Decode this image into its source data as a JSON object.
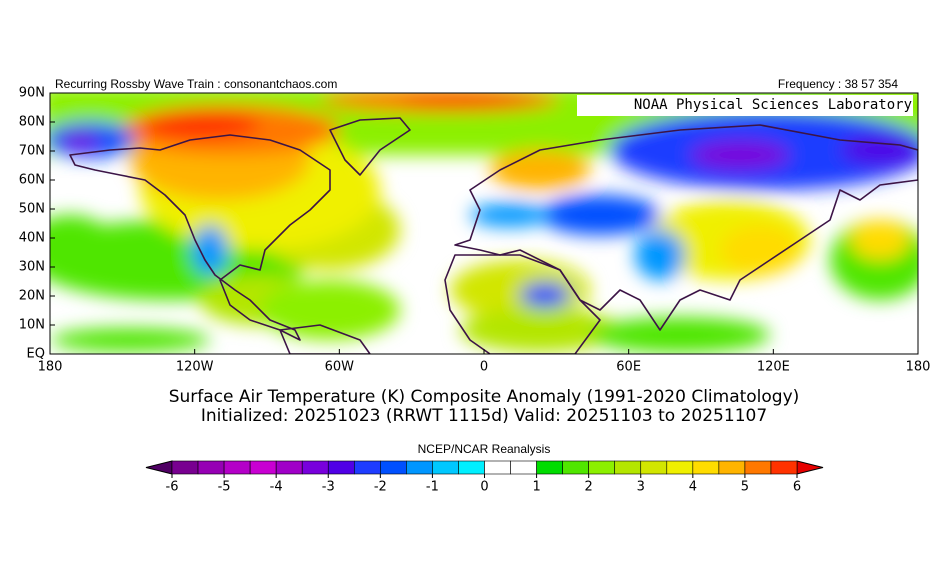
{
  "header": {
    "left": "Recurring Rossby Wave Train : consonantchaos.com",
    "right": "Frequency : 38 57 354"
  },
  "map": {
    "label": "NOAA Physical Sciences Laboratory",
    "lat_ticks": [
      "90N",
      "80N",
      "70N",
      "60N",
      "50N",
      "40N",
      "30N",
      "20N",
      "10N",
      "EQ"
    ],
    "lon_ticks": [
      "180",
      "120W",
      "60W",
      "0",
      "60E",
      "120E",
      "180"
    ]
  },
  "title": {
    "line1": "Surface Air Temperature (K) Composite Anomaly (1991-2020 Climatology)",
    "line2": "Initialized: 20251023 (RRWT 1115d) Valid: 20251103 to 20251107"
  },
  "colorbar": {
    "title": "NCEP/NCAR Reanalysis",
    "range": [
      -6,
      6
    ],
    "ticks": [
      -6,
      -5,
      -4,
      -3,
      -2,
      -1,
      0,
      1,
      2,
      3,
      4,
      5,
      6
    ],
    "low_color": "#500064",
    "high_color": "#e60000",
    "colors": [
      "#780090",
      "#9600b4",
      "#b400c8",
      "#c800d2",
      "#a000c8",
      "#7800dc",
      "#5000e6",
      "#1e3cff",
      "#0050ff",
      "#0096ff",
      "#00c8ff",
      "#00f0ff",
      "#ffffff",
      "#ffffff",
      "#00dc00",
      "#50e600",
      "#8cf000",
      "#b4e600",
      "#d2e600",
      "#f0f000",
      "#ffdc00",
      "#ffb400",
      "#ff7800",
      "#ff3200"
    ]
  }
}
